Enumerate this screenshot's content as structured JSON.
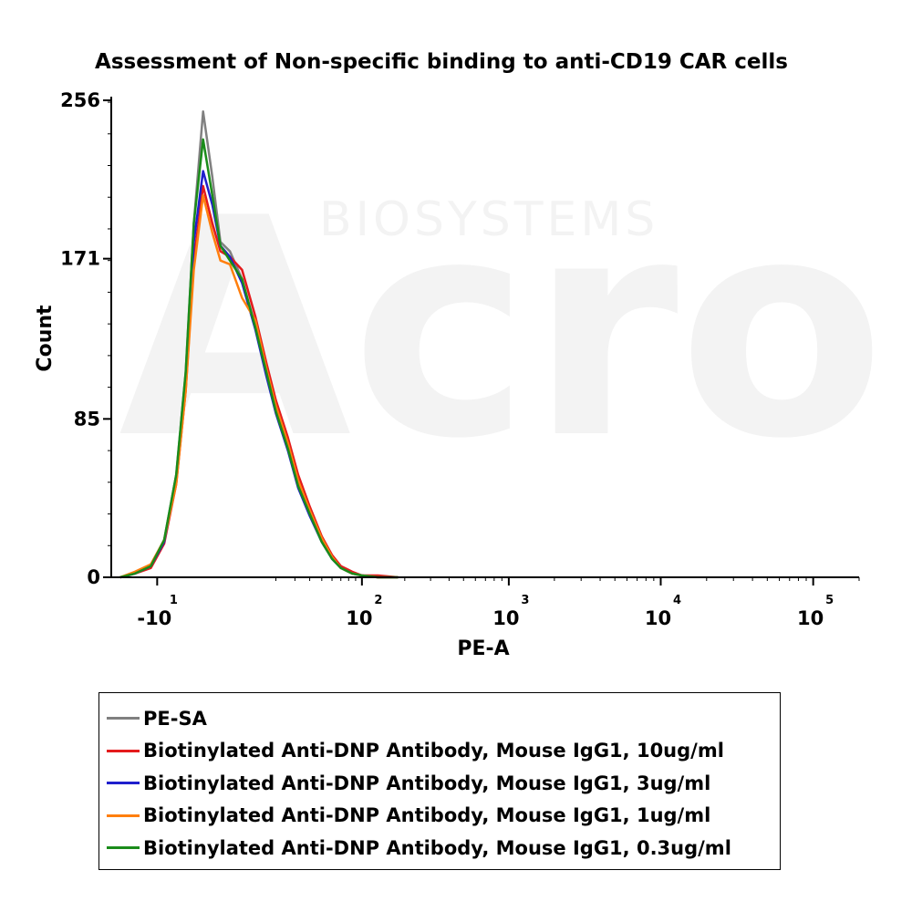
{
  "chart_data": {
    "type": "line",
    "title": "Assessment of Non-specific binding to anti-CD19 CAR cells",
    "xlabel": "PE-A",
    "ylabel": "Count",
    "xscale": "biexponential",
    "ylim": [
      0,
      256
    ],
    "xlim": [
      -30,
      200000
    ],
    "grid": false,
    "legend_position": "bottom",
    "y_ticks": [
      {
        "value": 0,
        "label": "0"
      },
      {
        "value": 85,
        "label": "85"
      },
      {
        "value": 171,
        "label": "171"
      },
      {
        "value": 256,
        "label": "256"
      }
    ],
    "x_ticks": [
      {
        "value": -10,
        "base": "-10",
        "exp": "1"
      },
      {
        "value": 100,
        "base": "10",
        "exp": "2"
      },
      {
        "value": 1000,
        "base": "10",
        "exp": "3"
      },
      {
        "value": 10000,
        "base": "10",
        "exp": "4"
      },
      {
        "value": 100000,
        "base": "10",
        "exp": "5"
      }
    ],
    "series": [
      {
        "name": "PE-SA",
        "color": "#808080",
        "x": [
          -25,
          -18,
          -12,
          -8,
          -5,
          -3,
          -1.5,
          0,
          1.5,
          3,
          5,
          8,
          12,
          16,
          20,
          26,
          32,
          40,
          50,
          60,
          70,
          85,
          100,
          130,
          180
        ],
        "y": [
          0,
          2,
          6,
          20,
          55,
          110,
          190,
          250,
          215,
          180,
          175,
          160,
          135,
          110,
          90,
          70,
          50,
          35,
          20,
          10,
          5,
          2,
          1,
          0,
          0
        ]
      },
      {
        "name": "Biotinylated Anti-DNP Antibody, Mouse IgG1, 10ug/ml",
        "color": "#e41a1c",
        "x": [
          -25,
          -18,
          -12,
          -8,
          -5,
          -3,
          -1.5,
          0,
          1.5,
          3,
          5,
          8,
          12,
          16,
          20,
          26,
          32,
          40,
          50,
          60,
          70,
          85,
          100,
          130,
          180
        ],
        "y": [
          0,
          2,
          5,
          18,
          50,
          100,
          170,
          210,
          190,
          175,
          172,
          165,
          140,
          115,
          95,
          75,
          55,
          38,
          22,
          12,
          6,
          3,
          1,
          1,
          0
        ]
      },
      {
        "name": "Biotinylated Anti-DNP Antibody, Mouse IgG1, 3ug/ml",
        "color": "#1f1fcc",
        "x": [
          -25,
          -18,
          -12,
          -8,
          -5,
          -3,
          -1.5,
          0,
          1.5,
          3,
          5,
          8,
          12,
          16,
          20,
          26,
          32,
          40,
          50,
          60,
          70,
          85,
          100,
          130,
          180
        ],
        "y": [
          0,
          2,
          6,
          19,
          52,
          105,
          180,
          218,
          200,
          178,
          172,
          158,
          133,
          108,
          88,
          68,
          48,
          33,
          19,
          10,
          5,
          2,
          1,
          0,
          0
        ]
      },
      {
        "name": "Biotinylated Anti-DNP Antibody, Mouse IgG1, 1ug/ml",
        "color": "#ff7f0e",
        "x": [
          -25,
          -18,
          -12,
          -8,
          -5,
          -3,
          -1.5,
          0,
          1.5,
          3,
          5,
          8,
          12,
          16,
          20,
          26,
          32,
          40,
          50,
          60,
          70,
          85,
          100,
          130,
          180
        ],
        "y": [
          0,
          3,
          7,
          20,
          50,
          100,
          165,
          205,
          185,
          170,
          168,
          150,
          138,
          112,
          92,
          72,
          52,
          36,
          21,
          11,
          5,
          2,
          1,
          0,
          0
        ]
      },
      {
        "name": "Biotinylated Anti-DNP Antibody, Mouse IgG1, 0.3ug/ml",
        "color": "#1a8c1a",
        "x": [
          -25,
          -18,
          -12,
          -8,
          -5,
          -3,
          -1.5,
          0,
          1.5,
          3,
          5,
          8,
          12,
          16,
          20,
          26,
          32,
          40,
          50,
          60,
          70,
          85,
          100,
          130,
          180
        ],
        "y": [
          0,
          2,
          6,
          20,
          55,
          110,
          190,
          235,
          205,
          178,
          170,
          160,
          134,
          110,
          89,
          69,
          49,
          34,
          19,
          10,
          5,
          2,
          1,
          0,
          0
        ]
      }
    ]
  }
}
